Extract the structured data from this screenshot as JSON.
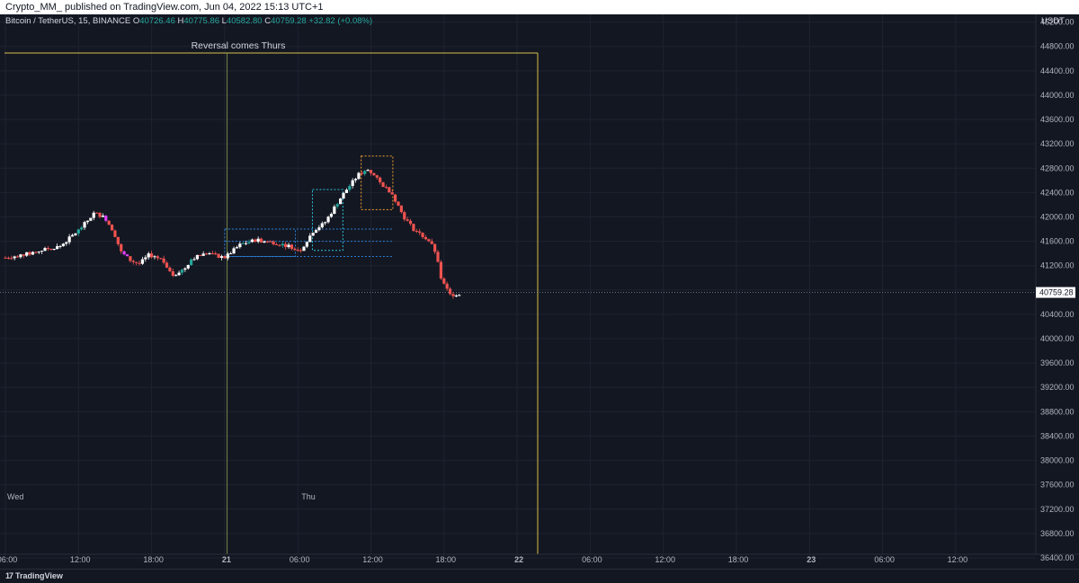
{
  "header": {
    "published_line": "Crypto_MM_ published on TradingView.com, Jun 04, 2022 15:13 UTC+1"
  },
  "legend": {
    "symbol": "Bitcoin / TetherUS, 15, BINANCE",
    "open_key": "O",
    "open": "40726.46",
    "high_key": "H",
    "high": "40775.86",
    "low_key": "L",
    "low": "40582.80",
    "close_key": "C",
    "close": "40759.28",
    "change": "+32.82 (+0.08%)"
  },
  "price_unit": "USDT",
  "annotation_text": "Reversal comes Thurs",
  "footer": {
    "brand": "TradingView",
    "logo_glyph": "17"
  },
  "colors": {
    "background": "#131722",
    "up": "#ffffff",
    "up_alt": "#26a69a",
    "down": "#ef5350",
    "down_alt": "#e040fb",
    "rect_yellow": "#d4c04a",
    "box_cyan": "#2ec4d6",
    "box_blue": "#2a7fd4",
    "box_orange": "#f0a030",
    "grid": "#1f2330"
  },
  "chart_data": {
    "type": "candlestick",
    "symbol": "Bitcoin / TetherUS",
    "interval": "15",
    "exchange": "BINANCE",
    "y_axis": {
      "unit": "USDT",
      "range": [
        36200,
        45400
      ],
      "ticks": [
        "36400.00",
        "36800.00",
        "37200.00",
        "37600.00",
        "38000.00",
        "38400.00",
        "38800.00",
        "39200.00",
        "39600.00",
        "40000.00",
        "40400.00",
        "40800.00",
        "41200.00",
        "41600.00",
        "42000.00",
        "42400.00",
        "42800.00",
        "43200.00",
        "43600.00",
        "44000.00",
        "44400.00",
        "44800.00",
        "45200.00"
      ]
    },
    "x_axis": {
      "ticks": [
        "06:00",
        "12:00",
        "18:00",
        "21",
        "06:00",
        "12:00",
        "18:00",
        "22",
        "06:00",
        "12:00",
        "18:00",
        "23",
        "06:00",
        "12:00"
      ],
      "day_labels": [
        "Wed",
        "Thu"
      ]
    },
    "last_price_label": "40759.28",
    "last_price": 40759.28,
    "anchors": [
      {
        "hours": 0,
        "price": 41330
      },
      {
        "hours": 2.0,
        "price": 41400
      },
      {
        "hours": 3.5,
        "price": 41480
      },
      {
        "hours": 4.5,
        "price": 41520
      },
      {
        "hours": 6.0,
        "price": 41780
      },
      {
        "hours": 6.8,
        "price": 41950
      },
      {
        "hours": 7.3,
        "price": 42070
      },
      {
        "hours": 8.2,
        "price": 41980
      },
      {
        "hours": 8.9,
        "price": 41750
      },
      {
        "hours": 9.5,
        "price": 41420
      },
      {
        "hours": 10.3,
        "price": 41280
      },
      {
        "hours": 11.0,
        "price": 41230
      },
      {
        "hours": 11.8,
        "price": 41380
      },
      {
        "hours": 12.8,
        "price": 41300
      },
      {
        "hours": 13.8,
        "price": 41050
      },
      {
        "hours": 14.7,
        "price": 41150
      },
      {
        "hours": 15.3,
        "price": 41320
      },
      {
        "hours": 16.5,
        "price": 41400
      },
      {
        "hours": 18.0,
        "price": 41330
      },
      {
        "hours": 19.3,
        "price": 41550
      },
      {
        "hours": 20.5,
        "price": 41620
      },
      {
        "hours": 22.0,
        "price": 41580
      },
      {
        "hours": 23.3,
        "price": 41520
      },
      {
        "hours": 24.2,
        "price": 41450
      },
      {
        "hours": 25.3,
        "price": 41780
      },
      {
        "hours": 26.2,
        "price": 41900
      },
      {
        "hours": 27.3,
        "price": 42250
      },
      {
        "hours": 28.0,
        "price": 42450
      },
      {
        "hours": 29.0,
        "price": 42700
      },
      {
        "hours": 29.8,
        "price": 42780
      },
      {
        "hours": 30.8,
        "price": 42550
      },
      {
        "hours": 31.7,
        "price": 42400
      },
      {
        "hours": 32.7,
        "price": 42000
      },
      {
        "hours": 33.5,
        "price": 41800
      },
      {
        "hours": 34.8,
        "price": 41600
      },
      {
        "hours": 35.3,
        "price": 41420
      },
      {
        "hours": 35.8,
        "price": 40950
      },
      {
        "hours": 36.5,
        "price": 40720
      },
      {
        "hours": 37.3,
        "price": 40740
      }
    ],
    "annotations": {
      "rectangle_label": "Reversal comes Thurs",
      "orange_box": {
        "hours": [
          29.2,
          31.8
        ],
        "price": [
          42120,
          43000
        ]
      },
      "cyan_box": {
        "hours": [
          25.2,
          27.7
        ],
        "price": [
          41450,
          42450
        ]
      },
      "blue_box": {
        "hours": [
          18.0,
          23.8
        ],
        "price": [
          41350,
          41800
        ]
      },
      "dotted_levels": [
        41800,
        41600,
        41350
      ]
    }
  }
}
